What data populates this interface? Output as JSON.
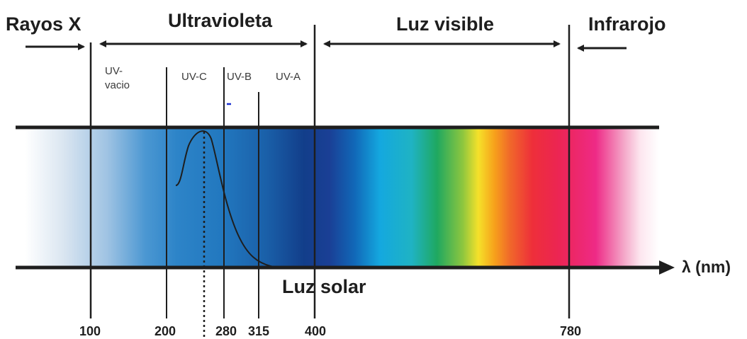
{
  "regions": {
    "xray": "Rayos X",
    "uv": "Ultravioleta",
    "visible": "Luz visible",
    "infrared": "Infrarojo"
  },
  "subbands": {
    "uv_vacuum_line1": "UV-",
    "uv_vacuum_line2": "vacio",
    "uvc": "UV-C",
    "uvb": "UV-B",
    "uva": "UV-A"
  },
  "ticks": {
    "t100": "100",
    "t200": "200",
    "t280": "280",
    "t315": "315",
    "t400": "400",
    "t780": "780"
  },
  "axis_label": "λ (nm)",
  "sunlight_label": "Luz solar",
  "colors": {
    "line": "#1e1e1e",
    "band_dark_blue": "#123e8a",
    "band_cyan": "#14a8df",
    "band_green": "#1fa860",
    "band_yellow": "#f5e12a",
    "band_red": "#ee2f3a",
    "band_magenta": "#ee2a86"
  }
}
